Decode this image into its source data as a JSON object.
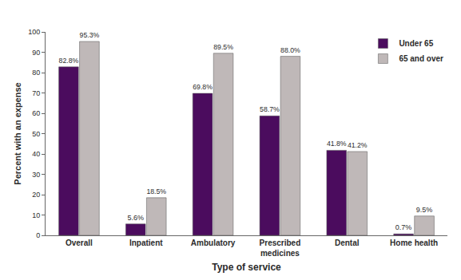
{
  "chart_data": {
    "type": "bar",
    "x_label": "Type of service",
    "y_label": "Percent with an expense",
    "categories": [
      "Overall",
      "Inpatient",
      "Ambulatory",
      "Prescribed medicines",
      "Dental",
      "Home health"
    ],
    "series": [
      {
        "name": "Under 65",
        "color": "#4b0c5e",
        "values": [
          82.8,
          5.6,
          69.8,
          58.7,
          41.8,
          0.7
        ],
        "value_labels": [
          "82.8%",
          "5.6%",
          "69.8%",
          "58.7%",
          "41.8%",
          "0.7%"
        ]
      },
      {
        "name": "65 and over",
        "color": "#bfb8b8",
        "values": [
          95.3,
          18.5,
          89.5,
          88.0,
          41.2,
          9.5
        ],
        "value_labels": [
          "95.3%",
          "18.5%",
          "89.5%",
          "88.0%",
          "41.2%",
          "9.5%"
        ]
      }
    ],
    "ylim": [
      0,
      100
    ],
    "yticks": [
      0,
      10,
      20,
      30,
      40,
      50,
      60,
      70,
      80,
      90,
      100
    ],
    "grid": false,
    "legend": "upper right",
    "data_labels": true
  }
}
